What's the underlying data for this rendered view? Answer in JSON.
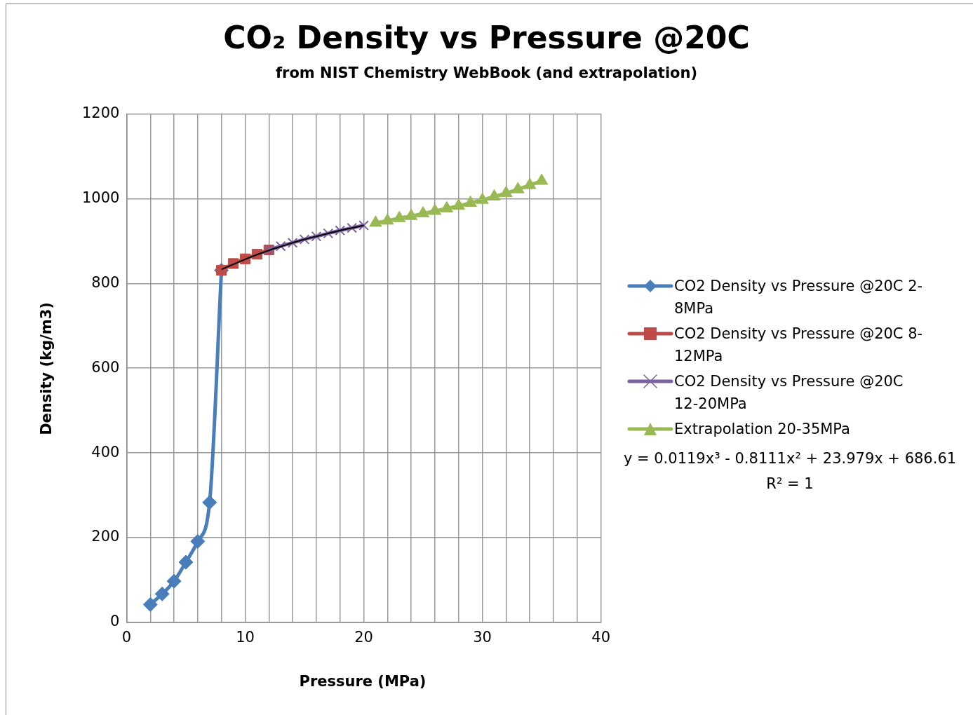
{
  "chart_data": {
    "type": "line",
    "title": "CO₂ Density vs Pressure @20C",
    "subtitle": "from NIST Chemistry WebBook (and extrapolation)",
    "xlabel": "Pressure (MPa)",
    "ylabel": "Density (kg/m3)",
    "xlim": [
      0,
      40
    ],
    "xticks": [
      0,
      {
        "value": 2,
        "label": null
      },
      {
        "value": 4,
        "label": null
      },
      {
        "value": 6,
        "label": null
      },
      {
        "value": 8,
        "label": null
      },
      10,
      {
        "value": 12,
        "label": null
      },
      {
        "value": 14,
        "label": null
      },
      {
        "value": 16,
        "label": null
      },
      {
        "value": 18,
        "label": null
      },
      20,
      {
        "value": 22,
        "label": null
      },
      {
        "value": 24,
        "label": null
      },
      {
        "value": 26,
        "label": null
      },
      {
        "value": 28,
        "label": null
      },
      30,
      {
        "value": 32,
        "label": null
      },
      {
        "value": 34,
        "label": null
      },
      {
        "value": 36,
        "label": null
      },
      {
        "value": 38,
        "label": null
      },
      40
    ],
    "ylim": [
      0,
      1200
    ],
    "yticks": [
      0,
      200,
      400,
      600,
      800,
      1000,
      1200
    ],
    "grid": true,
    "legend": "right",
    "line_style": "solid",
    "series": [
      {
        "name": "CO2 Density vs Pressure @20C 2-8MPa",
        "color": "#4a7ebb",
        "marker": "diamond",
        "x": [
          2,
          3,
          4,
          5,
          6,
          7,
          8
        ],
        "values": [
          42,
          67,
          97,
          142,
          191,
          283,
          831
        ]
      },
      {
        "name": "CO2 Density vs Pressure @20C 8-12MPa",
        "color": "#be4b48",
        "marker": "square",
        "x": [
          8,
          9,
          10,
          11,
          12
        ],
        "values": [
          831,
          847,
          858,
          869,
          879
        ]
      },
      {
        "name": "CO2 Density vs Pressure @20C 12-20MPa",
        "color": "#7d60a0",
        "marker": "cross",
        "x": [
          12,
          13,
          14,
          15,
          16,
          17,
          18,
          19,
          20
        ],
        "values": [
          879,
          888,
          896,
          904,
          911,
          918,
          925,
          931,
          937
        ]
      },
      {
        "name": "Extrapolation 20-35MPa",
        "color": "#98b954",
        "marker": "triangle",
        "x": [
          21,
          22,
          23,
          24,
          25,
          26,
          27,
          28,
          29,
          30,
          31,
          32,
          33,
          34,
          35
        ],
        "values": [
          943,
          948,
          954,
          959,
          965,
          971,
          977,
          983,
          990,
          997,
          1005,
          1013,
          1022,
          1032,
          1042
        ]
      },
      {
        "color": "#000000",
        "marker": "none",
        "x": [
          8,
          9,
          10,
          11,
          12,
          13,
          14,
          15,
          16,
          17,
          18,
          19,
          20
        ],
        "values": [
          833,
          845,
          857,
          868,
          878,
          887,
          896,
          904,
          911,
          918,
          925,
          931,
          937
        ]
      }
    ],
    "annotations": [
      "y = 0.0119x³ - 0.8111x² + 23.979x + 686.61",
      "R² = 1"
    ]
  }
}
